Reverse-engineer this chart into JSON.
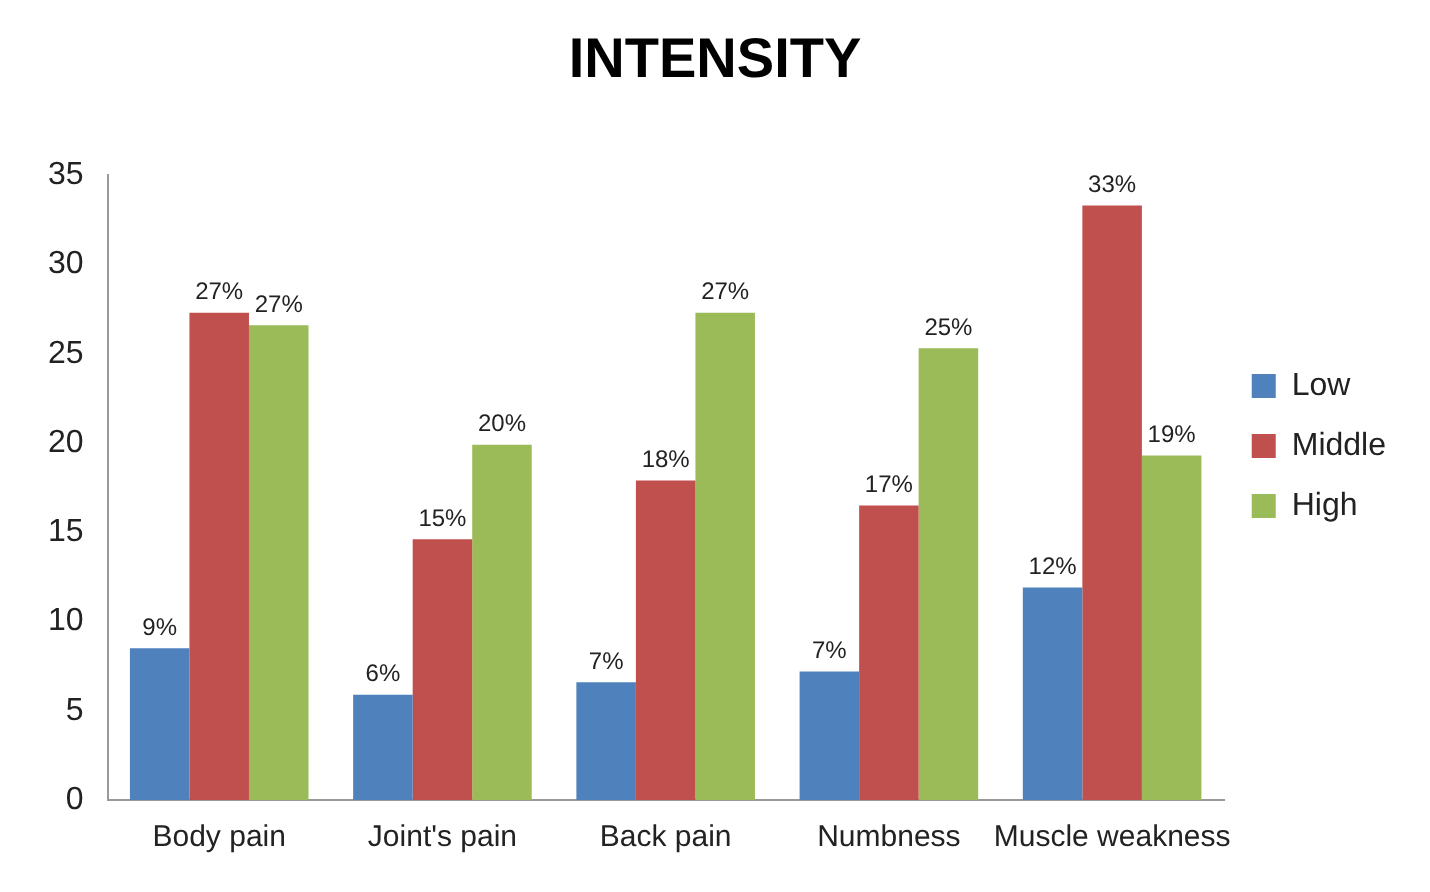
{
  "chart_data": {
    "type": "bar",
    "title": "INTENSITY",
    "categories": [
      "Body pain",
      "Joint's pain",
      "Back pain",
      "Numbness",
      "Muscle weakness"
    ],
    "series": [
      {
        "name": "Low",
        "color": "#4f81bd",
        "values": [
          8.5,
          5.9,
          6.6,
          7.2,
          11.9
        ],
        "value_labels": [
          "9%",
          "6%",
          "7%",
          "7%",
          "12%"
        ]
      },
      {
        "name": "Middle",
        "color": "#c0504d",
        "values": [
          27.3,
          14.6,
          17.9,
          16.5,
          33.3
        ],
        "value_labels": [
          "27%",
          "15%",
          "18%",
          "17%",
          "33%"
        ]
      },
      {
        "name": "High",
        "color": "#9bbb59",
        "values": [
          26.6,
          19.9,
          27.3,
          25.3,
          19.3
        ],
        "value_labels": [
          "27%",
          "20%",
          "27%",
          "25%",
          "19%"
        ]
      }
    ],
    "ylim": [
      0,
      35
    ],
    "yticks": [
      0,
      5,
      10,
      15,
      20,
      25,
      30,
      35
    ],
    "grid": false,
    "legend": "right"
  }
}
